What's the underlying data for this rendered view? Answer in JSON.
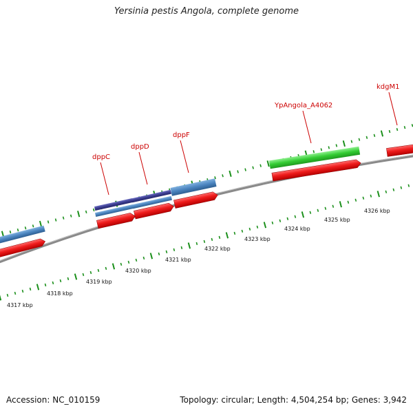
{
  "title": "Yersinia pestis Angola, complete genome",
  "footer": {
    "accession": "Accession: NC_010159",
    "summary": "Topology: circular; Length: 4,504,254 bp; Genes: 3,942"
  },
  "kbp_labels": [
    "4317 kbp",
    "4318 kbp",
    "4319 kbp",
    "4320 kbp",
    "4321 kbp",
    "4322 kbp",
    "4323 kbp",
    "4324 kbp",
    "4325 kbp",
    "4326 kbp"
  ],
  "gene_labels": [
    "dppC",
    "dppD",
    "dppF",
    "YpAngola_A4062",
    "kdgM1"
  ],
  "colors": {
    "cds_red": "#ee1c1c",
    "gene_blue": "#4a84bf",
    "gene_navy": "#3b3d8f",
    "gene_green": "#33cc33",
    "backbone": "#8a8a8a",
    "tick_green": "#1a8f1a",
    "label_red": "#cc0000"
  }
}
